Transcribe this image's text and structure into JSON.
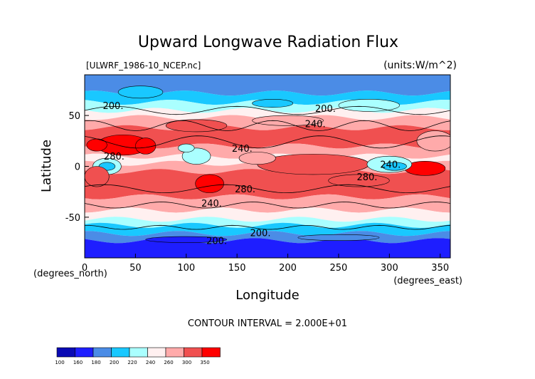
{
  "chart_data": {
    "type": "heatmap",
    "title": "Upward Longwave Radiation Flux",
    "file_label": "[ULWRF_1986-10_NCEP.nc]",
    "units_label": "(units:W/m^2)",
    "xlabel": "Longitude",
    "ylabel": "Latitude",
    "x_units_label": "(degrees_east)",
    "y_units_label": "(degrees_north)",
    "xlim": [
      0,
      360
    ],
    "ylim": [
      -90,
      90
    ],
    "x_ticks": [
      0,
      50,
      100,
      150,
      200,
      250,
      300,
      350
    ],
    "y_ticks": [
      -50,
      0,
      50
    ],
    "contour_interval_text": "CONTOUR INTERVAL = 2.000E+01",
    "contour_labels": [
      {
        "text": "200.",
        "lon": 28,
        "lat": 60
      },
      {
        "text": "200.",
        "lon": 237,
        "lat": 57
      },
      {
        "text": "240.",
        "lon": 227,
        "lat": 42
      },
      {
        "text": "240.",
        "lon": 155,
        "lat": 18
      },
      {
        "text": "280.",
        "lon": 29,
        "lat": 10
      },
      {
        "text": "280.",
        "lon": 158,
        "lat": -22
      },
      {
        "text": "280.",
        "lon": 278,
        "lat": -10
      },
      {
        "text": "240.",
        "lon": 125,
        "lat": -36
      },
      {
        "text": "240.",
        "lon": 301,
        "lat": 2
      },
      {
        "text": "200.",
        "lon": 173,
        "lat": -65
      },
      {
        "text": "200.",
        "lon": 130,
        "lat": -73
      }
    ],
    "colorbar": {
      "ticks": [
        "100",
        "160",
        "180",
        "200",
        "220",
        "240",
        "260",
        "300",
        "350"
      ],
      "colors": [
        "#0a0ab4",
        "#1e1eff",
        "#4b8ce6",
        "#19c8ff",
        "#aaffff",
        "#fff0f0",
        "#ffaaaa",
        "#f05050",
        "#ff0000"
      ]
    },
    "bands": [
      {
        "from": 90,
        "to": 72,
        "level": 2
      },
      {
        "from": 72,
        "to": 63,
        "level": 3
      },
      {
        "from": 63,
        "to": 55,
        "level": 4
      },
      {
        "from": 55,
        "to": 48,
        "level": 5
      },
      {
        "from": 48,
        "to": 38,
        "level": 6
      },
      {
        "from": 38,
        "to": 20,
        "level": 7
      },
      {
        "from": 20,
        "to": 10,
        "level": 6
      },
      {
        "from": 10,
        "to": 3,
        "level": 5
      },
      {
        "from": 3,
        "to": -5,
        "level": 6
      },
      {
        "from": -5,
        "to": -30,
        "level": 7
      },
      {
        "from": -30,
        "to": -43,
        "level": 6
      },
      {
        "from": -43,
        "to": -52,
        "level": 5
      },
      {
        "from": -52,
        "to": -58,
        "level": 4
      },
      {
        "from": -58,
        "to": -66,
        "level": 3
      },
      {
        "from": -66,
        "to": -73,
        "level": 2
      },
      {
        "from": -73,
        "to": -90,
        "level": 1
      }
    ],
    "blobs": [
      {
        "lon": 38,
        "lat": 21,
        "rlon": 26,
        "rlat": 10,
        "level": 8
      },
      {
        "lon": 60,
        "lat": 20,
        "rlon": 10,
        "rlat": 8,
        "level": 8
      },
      {
        "lon": 12,
        "lat": 21,
        "rlon": 10,
        "rlat": 6,
        "level": 8
      },
      {
        "lon": 123,
        "lat": -17,
        "rlon": 14,
        "rlat": 9,
        "level": 8
      },
      {
        "lon": 232,
        "lat": 0,
        "rlon": 14,
        "rlat": 4,
        "level": 8
      },
      {
        "lon": 335,
        "lat": -2,
        "rlon": 20,
        "rlat": 7,
        "level": 8
      },
      {
        "lon": 225,
        "lat": 2,
        "rlon": 55,
        "rlat": 10,
        "level": 7
      },
      {
        "lon": 22,
        "lat": 0,
        "rlon": 14,
        "rlat": 8,
        "level": 4
      },
      {
        "lon": 22,
        "lat": 0,
        "rlon": 8,
        "rlat": 4,
        "level": 3
      },
      {
        "lon": 300,
        "lat": 2,
        "rlon": 22,
        "rlat": 8,
        "level": 4
      },
      {
        "lon": 305,
        "lat": 0,
        "rlon": 12,
        "rlat": 4,
        "level": 3
      },
      {
        "lon": 110,
        "lat": 10,
        "rlon": 14,
        "rlat": 8,
        "level": 4
      },
      {
        "lon": 100,
        "lat": 18,
        "rlon": 8,
        "rlat": 4,
        "level": 4
      },
      {
        "lon": 170,
        "lat": 8,
        "rlon": 18,
        "rlat": 6,
        "level": 6
      },
      {
        "lon": 345,
        "lat": 25,
        "rlon": 18,
        "rlat": 10,
        "level": 6
      },
      {
        "lon": 110,
        "lat": 40,
        "rlon": 30,
        "rlat": 6,
        "level": 7
      },
      {
        "lon": 200,
        "lat": 45,
        "rlon": 35,
        "rlat": 5,
        "level": 6
      },
      {
        "lon": 12,
        "lat": -10,
        "rlon": 12,
        "rlat": 10,
        "level": 7
      },
      {
        "lon": 270,
        "lat": -14,
        "rlon": 30,
        "rlat": 6,
        "level": 7
      },
      {
        "lon": 55,
        "lat": 73,
        "rlon": 22,
        "rlat": 6,
        "level": 3
      },
      {
        "lon": 185,
        "lat": 62,
        "rlon": 20,
        "rlat": 4,
        "level": 3
      },
      {
        "lon": 280,
        "lat": 60,
        "rlon": 30,
        "rlat": 6,
        "level": 4
      },
      {
        "lon": 100,
        "lat": -72,
        "rlon": 40,
        "rlat": 3,
        "level": 1
      },
      {
        "lon": 250,
        "lat": -70,
        "rlon": 40,
        "rlat": 3,
        "level": 2
      }
    ],
    "contour_lines": [
      {
        "lat": 55,
        "amp": 4,
        "wave": 3,
        "phase": 0.0
      },
      {
        "lat": 40,
        "amp": 5,
        "wave": 4,
        "phase": 1.2
      },
      {
        "lat": 24,
        "amp": 6,
        "wave": 3,
        "phase": 2.0
      },
      {
        "lat": -22,
        "amp": 4,
        "wave": 3,
        "phase": 0.6
      },
      {
        "lat": -38,
        "amp": 3,
        "wave": 4,
        "phase": 2.6
      },
      {
        "lat": -60,
        "amp": 2,
        "wave": 5,
        "phase": 1.4
      }
    ]
  }
}
